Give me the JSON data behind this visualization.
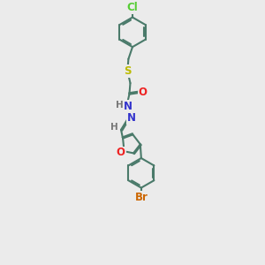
{
  "background_color": "#ebebeb",
  "bond_color": "#4a7a6a",
  "bond_lw": 1.5,
  "atom_labels": {
    "Cl": {
      "color": "#55cc33",
      "fontsize": 8.5
    },
    "S": {
      "color": "#bbbb00",
      "fontsize": 8.5
    },
    "O_carbonyl": {
      "color": "#ee2222",
      "fontsize": 8.5
    },
    "N": {
      "color": "#3333cc",
      "fontsize": 8.5
    },
    "H": {
      "color": "#777777",
      "fontsize": 7.5
    },
    "O_furan": {
      "color": "#ee2222",
      "fontsize": 8.5
    },
    "Br": {
      "color": "#cc6600",
      "fontsize": 8.5
    }
  },
  "fig_width": 3.0,
  "fig_height": 3.0,
  "dpi": 100
}
